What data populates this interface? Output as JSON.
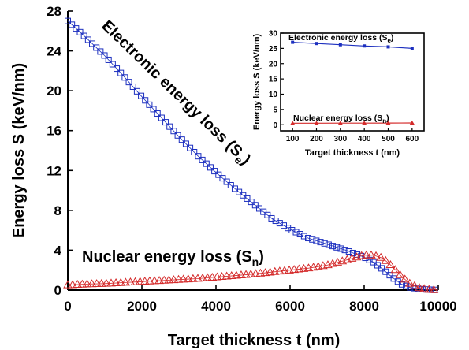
{
  "chart_data": [
    {
      "type": "scatter",
      "xlabel": "Target thickness t (nm)",
      "ylabel": "Energy loss S (keV/nm)",
      "xlim": [
        0,
        10000
      ],
      "ylim": [
        0,
        28
      ],
      "xticks": [
        "0",
        "2000",
        "4000",
        "6000",
        "8000",
        "10000"
      ],
      "yticks": [
        "0",
        "4",
        "8",
        "12",
        "16",
        "20",
        "24",
        "28"
      ],
      "grid": false,
      "annotations": {
        "electronic": {
          "text": "Electronic energy loss (S",
          "sub": "e",
          "close": ")"
        },
        "nuclear": {
          "text": "Nuclear energy loss (S",
          "sub": "n",
          "close": ")"
        }
      },
      "series": [
        {
          "key": "electronic",
          "marker": "square-open",
          "color": "#1c2fbf",
          "x": [
            0,
            500,
            1000,
            1500,
            2000,
            2500,
            3000,
            3500,
            4000,
            4500,
            5000,
            5500,
            6000,
            6500,
            7000,
            7500,
            8000,
            8250,
            8500,
            8750,
            9000,
            9250,
            9500,
            9750,
            10000
          ],
          "y": [
            27.0,
            25.3,
            23.5,
            21.5,
            19.4,
            17.4,
            15.4,
            13.5,
            11.8,
            10.2,
            8.7,
            7.2,
            6.1,
            5.2,
            4.6,
            4.0,
            3.3,
            2.8,
            2.1,
            1.3,
            0.6,
            0.25,
            0.1,
            0.05,
            0.0
          ]
        },
        {
          "key": "nuclear",
          "marker": "triangle-open",
          "color": "#d42a2a",
          "x": [
            0,
            500,
            1000,
            1500,
            2000,
            2500,
            3000,
            3500,
            4000,
            4500,
            5000,
            5500,
            6000,
            6500,
            7000,
            7500,
            7800,
            8000,
            8250,
            8500,
            8750,
            9000,
            9250,
            9500,
            9750,
            10000
          ],
          "y": [
            0.5,
            0.6,
            0.65,
            0.75,
            0.85,
            0.95,
            1.05,
            1.15,
            1.3,
            1.45,
            1.6,
            1.8,
            2.0,
            2.2,
            2.5,
            3.0,
            3.3,
            3.5,
            3.5,
            3.2,
            2.4,
            1.4,
            0.6,
            0.2,
            0.05,
            0.0
          ]
        }
      ]
    },
    {
      "type": "line",
      "inset": true,
      "xlabel": "Target thickness t (nm)",
      "ylabel": "Energy loss S (keV/nm)",
      "xlim": [
        50,
        650
      ],
      "ylim": [
        -2,
        30
      ],
      "xticks": [
        "100",
        "200",
        "300",
        "400",
        "500",
        "600"
      ],
      "yticks": [
        "0",
        "5",
        "10",
        "15",
        "20",
        "25",
        "30"
      ],
      "annotations": {
        "electronic": {
          "text": "Electronic energy loss (S",
          "sub": "e",
          "close": ")"
        },
        "nuclear": {
          "text": "Nuclear energy loss (S",
          "sub": "n",
          "close": ")"
        }
      },
      "series": [
        {
          "key": "electronic",
          "marker": "square-filled",
          "color": "#1c2fbf",
          "x": [
            100,
            200,
            300,
            400,
            500,
            600
          ],
          "y": [
            27.0,
            26.6,
            26.2,
            25.8,
            25.5,
            25.0
          ]
        },
        {
          "key": "nuclear",
          "marker": "triangle-filled",
          "color": "#d42a2a",
          "x": [
            100,
            200,
            300,
            400,
            500,
            600
          ],
          "y": [
            0.5,
            0.5,
            0.52,
            0.53,
            0.55,
            0.57
          ]
        }
      ]
    }
  ]
}
